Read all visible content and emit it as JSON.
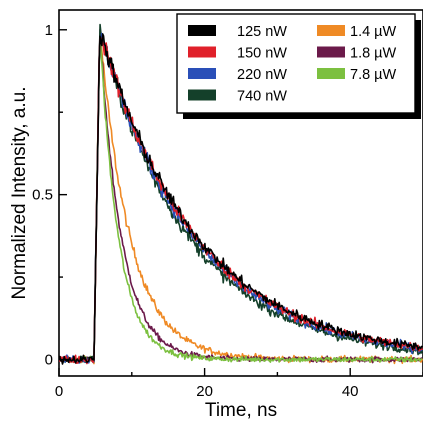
{
  "chart_data": {
    "type": "line",
    "xlabel": "Time, ns",
    "ylabel": "Normalized Intensity, a.u.",
    "xlim": [
      0,
      50
    ],
    "ylim": [
      -0.05,
      1.06
    ],
    "x_ticks": [
      0,
      20,
      40
    ],
    "x_tick_labels": [
      "0",
      "20",
      "40"
    ],
    "y_ticks": [
      0,
      0.5,
      1
    ],
    "y_tick_labels": [
      "0",
      "0.5",
      "1"
    ],
    "grid": false,
    "legend_position": "top-right",
    "pulse_onset_ns": 4.8,
    "peak_time_ns": 5.6,
    "series": [
      {
        "name": "125 nW",
        "color": "#000000",
        "decay_tau_ns": 13.5,
        "noise": 0.02
      },
      {
        "name": "150 nW",
        "color": "#e0202a",
        "decay_tau_ns": 13.3,
        "noise": 0.02
      },
      {
        "name": "220 nW",
        "color": "#2a4fb8",
        "decay_tau_ns": 13.0,
        "noise": 0.02
      },
      {
        "name": "740 nW",
        "color": "#14402a",
        "decay_tau_ns": 12.4,
        "noise": 0.02
      },
      {
        "name": "1.4 µW",
        "color": "#ef8a25",
        "decay_tau_ns": 4.2,
        "noise": 0.015
      },
      {
        "name": "1.8 µW",
        "color": "#6b1a4a",
        "decay_tau_ns": 3.0,
        "noise": 0.013
      },
      {
        "name": "7.8 µW",
        "color": "#7cc040",
        "decay_tau_ns": 2.6,
        "noise": 0.013
      }
    ]
  }
}
